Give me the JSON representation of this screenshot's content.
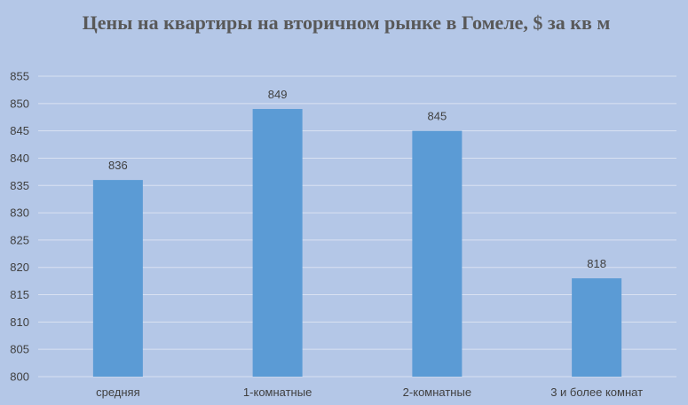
{
  "chart_data": {
    "type": "bar",
    "title": "Цены на квартиры на вторичном рынке в Гомеле, $ за кв м",
    "xlabel": "",
    "ylabel": "",
    "categories": [
      "средняя",
      "1-комнатные",
      "2-комнатные",
      "3 и более комнат"
    ],
    "values": [
      836,
      849,
      845,
      818
    ],
    "ylim": [
      800,
      855
    ],
    "ytick_step": 5,
    "grid": true,
    "data_labels": true,
    "colors": {
      "bar": "#5b9bd5",
      "background": "#b4c7e7",
      "grid": "#d9e1f2",
      "text": "#404040",
      "title": "#595959"
    }
  }
}
